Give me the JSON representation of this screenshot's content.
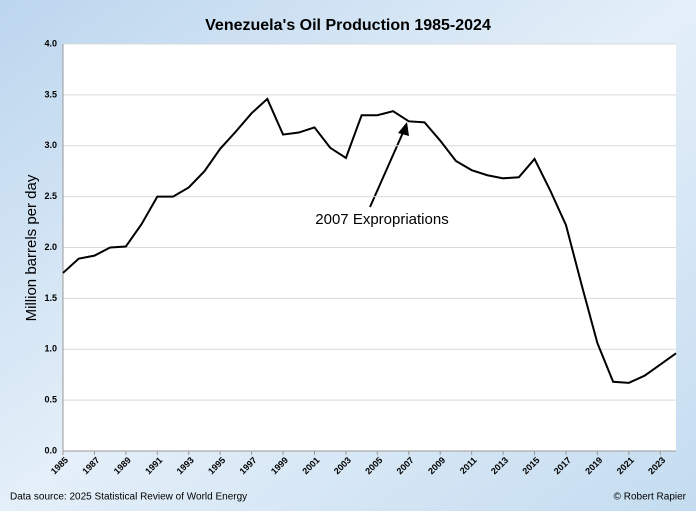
{
  "chart_data": {
    "type": "line",
    "title": "Venezuela's Oil Production 1985-2024",
    "y_label": "Million barrels per day",
    "annotation": "2007 Expropriations",
    "source": "Data source: 2025 Statistical Review of World Energy",
    "credit": "© Robert Rapier",
    "x": [
      1985,
      1986,
      1987,
      1988,
      1989,
      1990,
      1991,
      1992,
      1993,
      1994,
      1995,
      1996,
      1997,
      1998,
      1999,
      2000,
      2001,
      2002,
      2003,
      2004,
      2005,
      2006,
      2007,
      2008,
      2009,
      2010,
      2011,
      2012,
      2013,
      2014,
      2015,
      2016,
      2017,
      2018,
      2019,
      2020,
      2021,
      2022,
      2023,
      2024
    ],
    "series": [
      {
        "name": "Venezuela",
        "color": "#000000",
        "values": [
          1.75,
          1.89,
          1.92,
          2.0,
          2.01,
          2.23,
          2.5,
          2.5,
          2.59,
          2.75,
          2.97,
          3.14,
          3.32,
          3.46,
          3.11,
          3.13,
          3.18,
          2.98,
          2.88,
          3.3,
          3.3,
          3.34,
          3.24,
          3.23,
          3.05,
          2.85,
          2.76,
          2.71,
          2.68,
          2.69,
          2.87,
          2.56,
          2.22,
          1.63,
          1.06,
          0.68,
          0.67,
          0.74,
          0.85,
          0.96
        ]
      }
    ],
    "xlim": [
      1985,
      2024
    ],
    "xticks": [
      1985,
      1987,
      1989,
      1991,
      1993,
      1995,
      1997,
      1999,
      2001,
      2003,
      2005,
      2007,
      2009,
      2011,
      2013,
      2015,
      2017,
      2019,
      2021,
      2023
    ],
    "ylim": [
      0,
      4
    ],
    "yticks": [
      {
        "value": 0,
        "label": "0.0"
      },
      {
        "value": 0.5,
        "label": "0.5"
      },
      {
        "value": 1,
        "label": "1.0"
      },
      {
        "value": 1.5,
        "label": "1.5"
      },
      {
        "value": 2,
        "label": "2.0"
      },
      {
        "value": 2.5,
        "label": "2.5"
      },
      {
        "value": 3,
        "label": "3.0"
      },
      {
        "value": 3.5,
        "label": "3.5"
      },
      {
        "value": 4,
        "label": "4.0"
      }
    ],
    "grid": true
  }
}
